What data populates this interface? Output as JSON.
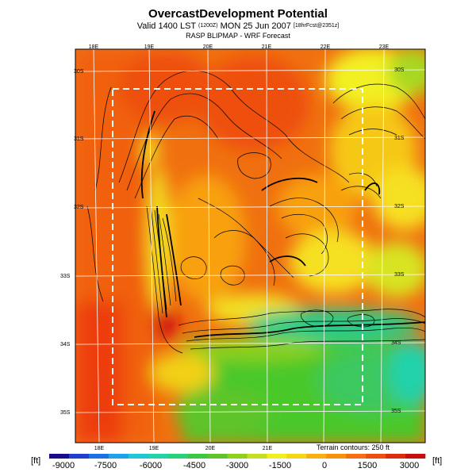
{
  "header": {
    "title": "OvercastDevelopment Potential",
    "subtitle_main": "Valid 1400 LST",
    "subtitle_small1": "(1200Z)",
    "subtitle_date": "MON 25 Jun 2007",
    "subtitle_small2": "[18hrFcst@2351z]",
    "subtitle2": "RASP BLIPMAP - WRF Forecast"
  },
  "map": {
    "lon_labels_top": [
      "18E",
      "19E",
      "20E",
      "21E",
      "22E",
      "23E"
    ],
    "lon_labels_bottom": [
      "18E",
      "19E",
      "20E",
      "21E"
    ],
    "lat_labels_left": [
      "30S",
      "31S",
      "32S",
      "33S",
      "34S",
      "35S"
    ],
    "lat_labels_right": [
      "30S",
      "31S",
      "32S",
      "33S",
      "34S",
      "35S"
    ],
    "terrain_note": "Terrain contours: 250 ft"
  },
  "colorbar": {
    "unit_left": "[ft]",
    "unit_right": "[ft]",
    "tick_labels": [
      "-9000",
      "-7500",
      "-6000",
      "-4500",
      "-3000",
      "-1500",
      "0",
      "1500",
      "3000"
    ],
    "colors": [
      "#1a0a8c",
      "#1f3fcf",
      "#1e6fe6",
      "#1ea3e8",
      "#1ec8d8",
      "#22d2aa",
      "#2ad07a",
      "#3cc844",
      "#5ec42a",
      "#8ed01e",
      "#c6e020",
      "#f0f020",
      "#f6d418",
      "#f8b010",
      "#f89010",
      "#f47010",
      "#ee4e10",
      "#e02a10",
      "#c80e0e"
    ]
  }
}
